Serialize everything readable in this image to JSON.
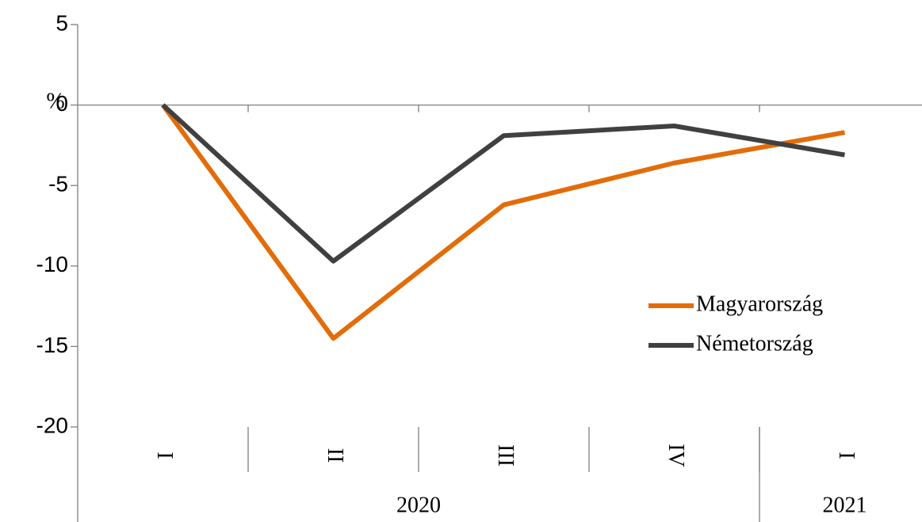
{
  "chart_data": {
    "type": "line",
    "y_label": "%",
    "categories": [
      "I",
      "II",
      "III",
      "IV",
      "I"
    ],
    "groups": [
      {
        "label": "2020",
        "span": 4
      },
      {
        "label": "2021",
        "span": 1
      }
    ],
    "series": [
      {
        "name": "Magyarország",
        "color": "#e36c0a",
        "values": [
          0,
          -14.5,
          -6.2,
          -3.6,
          -1.7
        ]
      },
      {
        "name": "Németország",
        "color": "#404040",
        "values": [
          0,
          -9.7,
          -1.9,
          -1.3,
          -3.1
        ]
      }
    ],
    "ylim": [
      -20,
      5
    ],
    "yticks": [
      -20,
      -15,
      -10,
      -5,
      0,
      5
    ],
    "legend": "right"
  }
}
